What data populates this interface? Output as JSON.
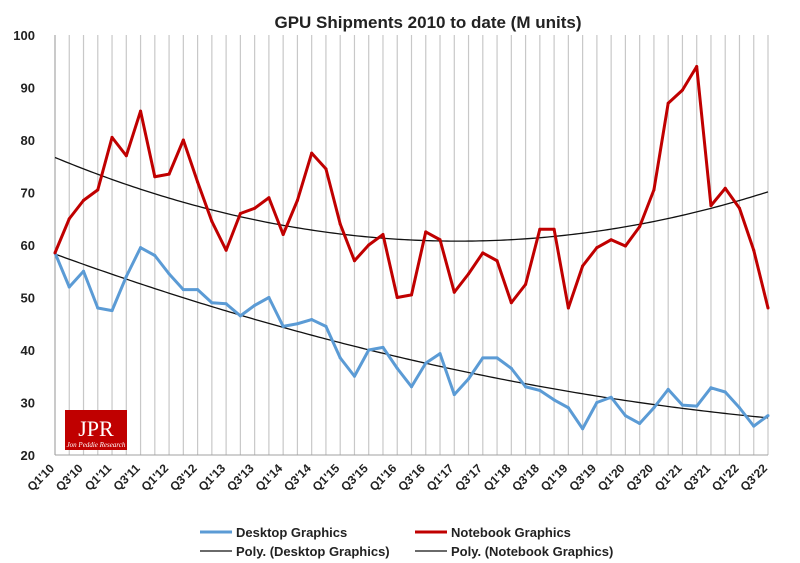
{
  "chart_data": {
    "type": "line",
    "title": "GPU Shipments 2010 to date (M units)",
    "xlabel": "",
    "ylabel": "",
    "ylim": [
      20,
      100
    ],
    "yticks": [
      20,
      30,
      40,
      50,
      60,
      70,
      80,
      90,
      100
    ],
    "grid": "vertical lines at each quarter",
    "legend_position": "bottom",
    "categories": [
      "Q1'10",
      "Q2'10",
      "Q3'10",
      "Q4'10",
      "Q1'11",
      "Q2'11",
      "Q3'11",
      "Q4'11",
      "Q1'12",
      "Q2'12",
      "Q3'12",
      "Q4'12",
      "Q1'13",
      "Q2'13",
      "Q3'13",
      "Q4'13",
      "Q1'14",
      "Q2'14",
      "Q3'14",
      "Q4'14",
      "Q1'15",
      "Q2'15",
      "Q3'15",
      "Q4'15",
      "Q1'16",
      "Q2'16",
      "Q3'16",
      "Q4'16",
      "Q1'17",
      "Q2'17",
      "Q3'17",
      "Q4'17",
      "Q1'18",
      "Q2'18",
      "Q3'18",
      "Q4'18",
      "Q1'19",
      "Q2'19",
      "Q3'19",
      "Q4'19",
      "Q1'20",
      "Q2'20",
      "Q3'20",
      "Q4'20",
      "Q1'21",
      "Q2'21",
      "Q3'21",
      "Q4'21",
      "Q1'22",
      "Q2'22",
      "Q3'22"
    ],
    "tick_labels": [
      "Q1'10",
      "Q3'10",
      "Q1'11",
      "Q3'11",
      "Q1'12",
      "Q3'12",
      "Q1'13",
      "Q3'13",
      "Q1'14",
      "Q3'14",
      "Q1'15",
      "Q3'15",
      "Q1'16",
      "Q3'16",
      "Q1'17",
      "Q3'17",
      "Q1'18",
      "Q3'18",
      "Q1'19",
      "Q3'19",
      "Q1'20",
      "Q3'20",
      "Q1'21",
      "Q3'21",
      "Q1'22",
      "Q3'22"
    ],
    "series": [
      {
        "name": "Desktop Graphics",
        "color": "#5b9bd5",
        "values": [
          58.5,
          52,
          55,
          48,
          47.5,
          54,
          59.5,
          58,
          54.5,
          51.5,
          51.5,
          49,
          48.8,
          46.5,
          48.5,
          50,
          44.5,
          45,
          45.8,
          44.5,
          38.5,
          35,
          40,
          40.5,
          36.5,
          33,
          37.5,
          39.3,
          31.5,
          34.5,
          38.5,
          38.5,
          36.5,
          33,
          32.3,
          30.5,
          29,
          25,
          30,
          31,
          27.5,
          26,
          29,
          32.5,
          29.5,
          29.3,
          32.8,
          32,
          29,
          25.5,
          27.5
        ]
      },
      {
        "name": "Notebook Graphics",
        "color": "#c00000",
        "values": [
          58.5,
          65,
          68.5,
          70.5,
          80.5,
          77,
          85.5,
          73,
          73.5,
          80,
          72,
          64.5,
          59,
          66,
          67,
          69,
          62,
          68.5,
          77.5,
          74.5,
          64,
          57,
          60,
          62,
          50,
          50.5,
          62.5,
          61,
          51,
          54.5,
          58.5,
          57,
          49,
          52.5,
          63,
          63,
          48,
          56,
          59.5,
          61,
          59.8,
          63.5,
          70.5,
          87,
          89.5,
          94,
          67.5,
          70.8,
          67,
          59,
          48
        ]
      },
      {
        "name": "Poly. (Desktop Graphics)",
        "color": "#111111",
        "trend_of": "Desktop Graphics"
      },
      {
        "name": "Poly. (Notebook Graphics)",
        "color": "#111111",
        "trend_of": "Notebook Graphics"
      }
    ]
  },
  "logo": {
    "mark": "JPR",
    "tagline": "Jon Peddie Research",
    "bg_color": "#c00000"
  }
}
